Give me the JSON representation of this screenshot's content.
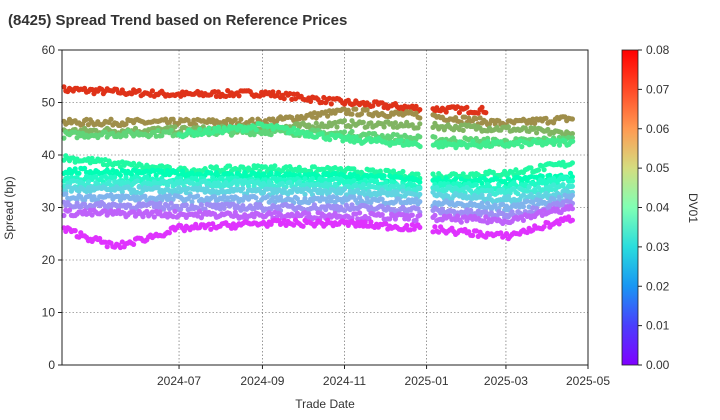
{
  "chart_data": {
    "type": "scatter",
    "title": "(8425)   Spread Trend based on Reference Prices",
    "xlabel": "Trade Date",
    "ylabel": "Spread (bp)",
    "colorbar_label": "DV01",
    "x_range": [
      "2024-04-05",
      "2025-05-01"
    ],
    "xticks": [
      "2024-07",
      "2024-09",
      "2024-11",
      "2025-01",
      "2025-03",
      "2025-05"
    ],
    "ylim": [
      0,
      60
    ],
    "yticks": [
      0,
      10,
      20,
      30,
      40,
      50,
      60
    ],
    "color_range": [
      0.0,
      0.08
    ],
    "color_ticks": [
      "0.00",
      "0.01",
      "0.02",
      "0.03",
      "0.04",
      "0.05",
      "0.06",
      "0.07",
      "0.08"
    ],
    "colormap": "rainbow",
    "grid": true,
    "series_bands": [
      {
        "dv01": 0.075,
        "points": [
          [
            "2024-04-05",
            52.5
          ],
          [
            "2024-07-01",
            51.5
          ],
          [
            "2024-09-01",
            51.8
          ],
          [
            "2024-11-01",
            50.0
          ],
          [
            "2025-01-01",
            48.8
          ],
          [
            "2025-02-15",
            48.5
          ]
        ]
      },
      {
        "dv01": 0.065,
        "points": [
          [
            "2024-04-05",
            46.2
          ],
          [
            "2024-09-01",
            46.3
          ],
          [
            "2024-11-01",
            48.3
          ],
          [
            "2025-01-01",
            47.5
          ],
          [
            "2025-03-01",
            46.0
          ],
          [
            "2025-04-20",
            47.0
          ]
        ]
      },
      {
        "dv01": 0.06,
        "points": [
          [
            "2024-04-05",
            44.5
          ],
          [
            "2024-09-01",
            45.0
          ],
          [
            "2024-11-01",
            46.0
          ],
          [
            "2025-01-01",
            45.5
          ],
          [
            "2025-03-01",
            45.0
          ],
          [
            "2025-04-20",
            44.0
          ]
        ]
      },
      {
        "dv01": 0.055,
        "points": [
          [
            "2024-04-05",
            43.8
          ],
          [
            "2024-09-01",
            44.5
          ],
          [
            "2024-11-01",
            44.0
          ],
          [
            "2025-01-01",
            43.0
          ],
          [
            "2025-03-01",
            42.5
          ],
          [
            "2025-04-20",
            43.0
          ]
        ]
      },
      {
        "dv01": 0.05,
        "points": [
          [
            "2024-07-01",
            44.0
          ],
          [
            "2024-09-01",
            45.5
          ],
          [
            "2024-11-01",
            43.0
          ],
          [
            "2025-01-01",
            42.0
          ],
          [
            "2025-03-01",
            42.0
          ],
          [
            "2025-04-20",
            42.5
          ]
        ]
      },
      {
        "dv01": 0.045,
        "points": [
          [
            "2024-04-05",
            39.5
          ],
          [
            "2024-07-01",
            37.0
          ],
          [
            "2024-09-01",
            37.5
          ],
          [
            "2024-11-01",
            37.0
          ],
          [
            "2025-01-01",
            36.0
          ],
          [
            "2025-03-01",
            36.5
          ],
          [
            "2025-04-20",
            38.5
          ]
        ]
      },
      {
        "dv01": 0.04,
        "points": [
          [
            "2024-04-05",
            37.0
          ],
          [
            "2024-09-01",
            36.0
          ],
          [
            "2024-11-01",
            36.0
          ],
          [
            "2025-01-01",
            35.0
          ],
          [
            "2025-03-01",
            35.0
          ],
          [
            "2025-04-20",
            36.0
          ]
        ]
      },
      {
        "dv01": 0.035,
        "points": [
          [
            "2024-04-05",
            35.5
          ],
          [
            "2024-09-01",
            35.0
          ],
          [
            "2024-11-01",
            35.0
          ],
          [
            "2025-01-01",
            34.0
          ],
          [
            "2025-03-01",
            34.0
          ],
          [
            "2025-04-20",
            35.5
          ]
        ]
      },
      {
        "dv01": 0.03,
        "points": [
          [
            "2024-04-05",
            34.5
          ],
          [
            "2024-09-01",
            34.5
          ],
          [
            "2024-11-01",
            34.0
          ],
          [
            "2025-01-01",
            33.5
          ],
          [
            "2025-03-01",
            33.0
          ],
          [
            "2025-04-20",
            34.0
          ]
        ]
      },
      {
        "dv01": 0.025,
        "points": [
          [
            "2024-04-05",
            33.5
          ],
          [
            "2024-09-01",
            33.0
          ],
          [
            "2024-11-01",
            33.0
          ],
          [
            "2025-01-01",
            32.5
          ],
          [
            "2025-03-01",
            31.5
          ],
          [
            "2025-04-20",
            33.0
          ]
        ]
      },
      {
        "dv01": 0.02,
        "points": [
          [
            "2024-04-05",
            32.0
          ],
          [
            "2024-09-01",
            31.5
          ],
          [
            "2024-11-01",
            31.5
          ],
          [
            "2025-01-01",
            31.0
          ],
          [
            "2025-03-01",
            30.0
          ],
          [
            "2025-04-20",
            32.0
          ]
        ]
      },
      {
        "dv01": 0.015,
        "points": [
          [
            "2024-04-05",
            30.5
          ],
          [
            "2024-09-01",
            30.0
          ],
          [
            "2024-11-01",
            30.0
          ],
          [
            "2025-01-01",
            29.5
          ],
          [
            "2025-03-01",
            28.5
          ],
          [
            "2025-04-20",
            31.0
          ]
        ]
      },
      {
        "dv01": 0.01,
        "points": [
          [
            "2024-04-05",
            29.0
          ],
          [
            "2024-09-01",
            28.5
          ],
          [
            "2024-11-01",
            28.5
          ],
          [
            "2025-01-01",
            28.0
          ],
          [
            "2025-03-01",
            27.5
          ],
          [
            "2025-04-20",
            30.0
          ]
        ]
      },
      {
        "dv01": 0.005,
        "points": [
          [
            "2024-04-05",
            26.0
          ],
          [
            "2024-05-15",
            22.5
          ],
          [
            "2024-07-01",
            26.0
          ],
          [
            "2024-09-01",
            27.0
          ],
          [
            "2024-11-01",
            27.0
          ],
          [
            "2025-01-01",
            26.0
          ],
          [
            "2025-03-01",
            24.5
          ],
          [
            "2025-04-20",
            28.0
          ]
        ]
      }
    ]
  }
}
